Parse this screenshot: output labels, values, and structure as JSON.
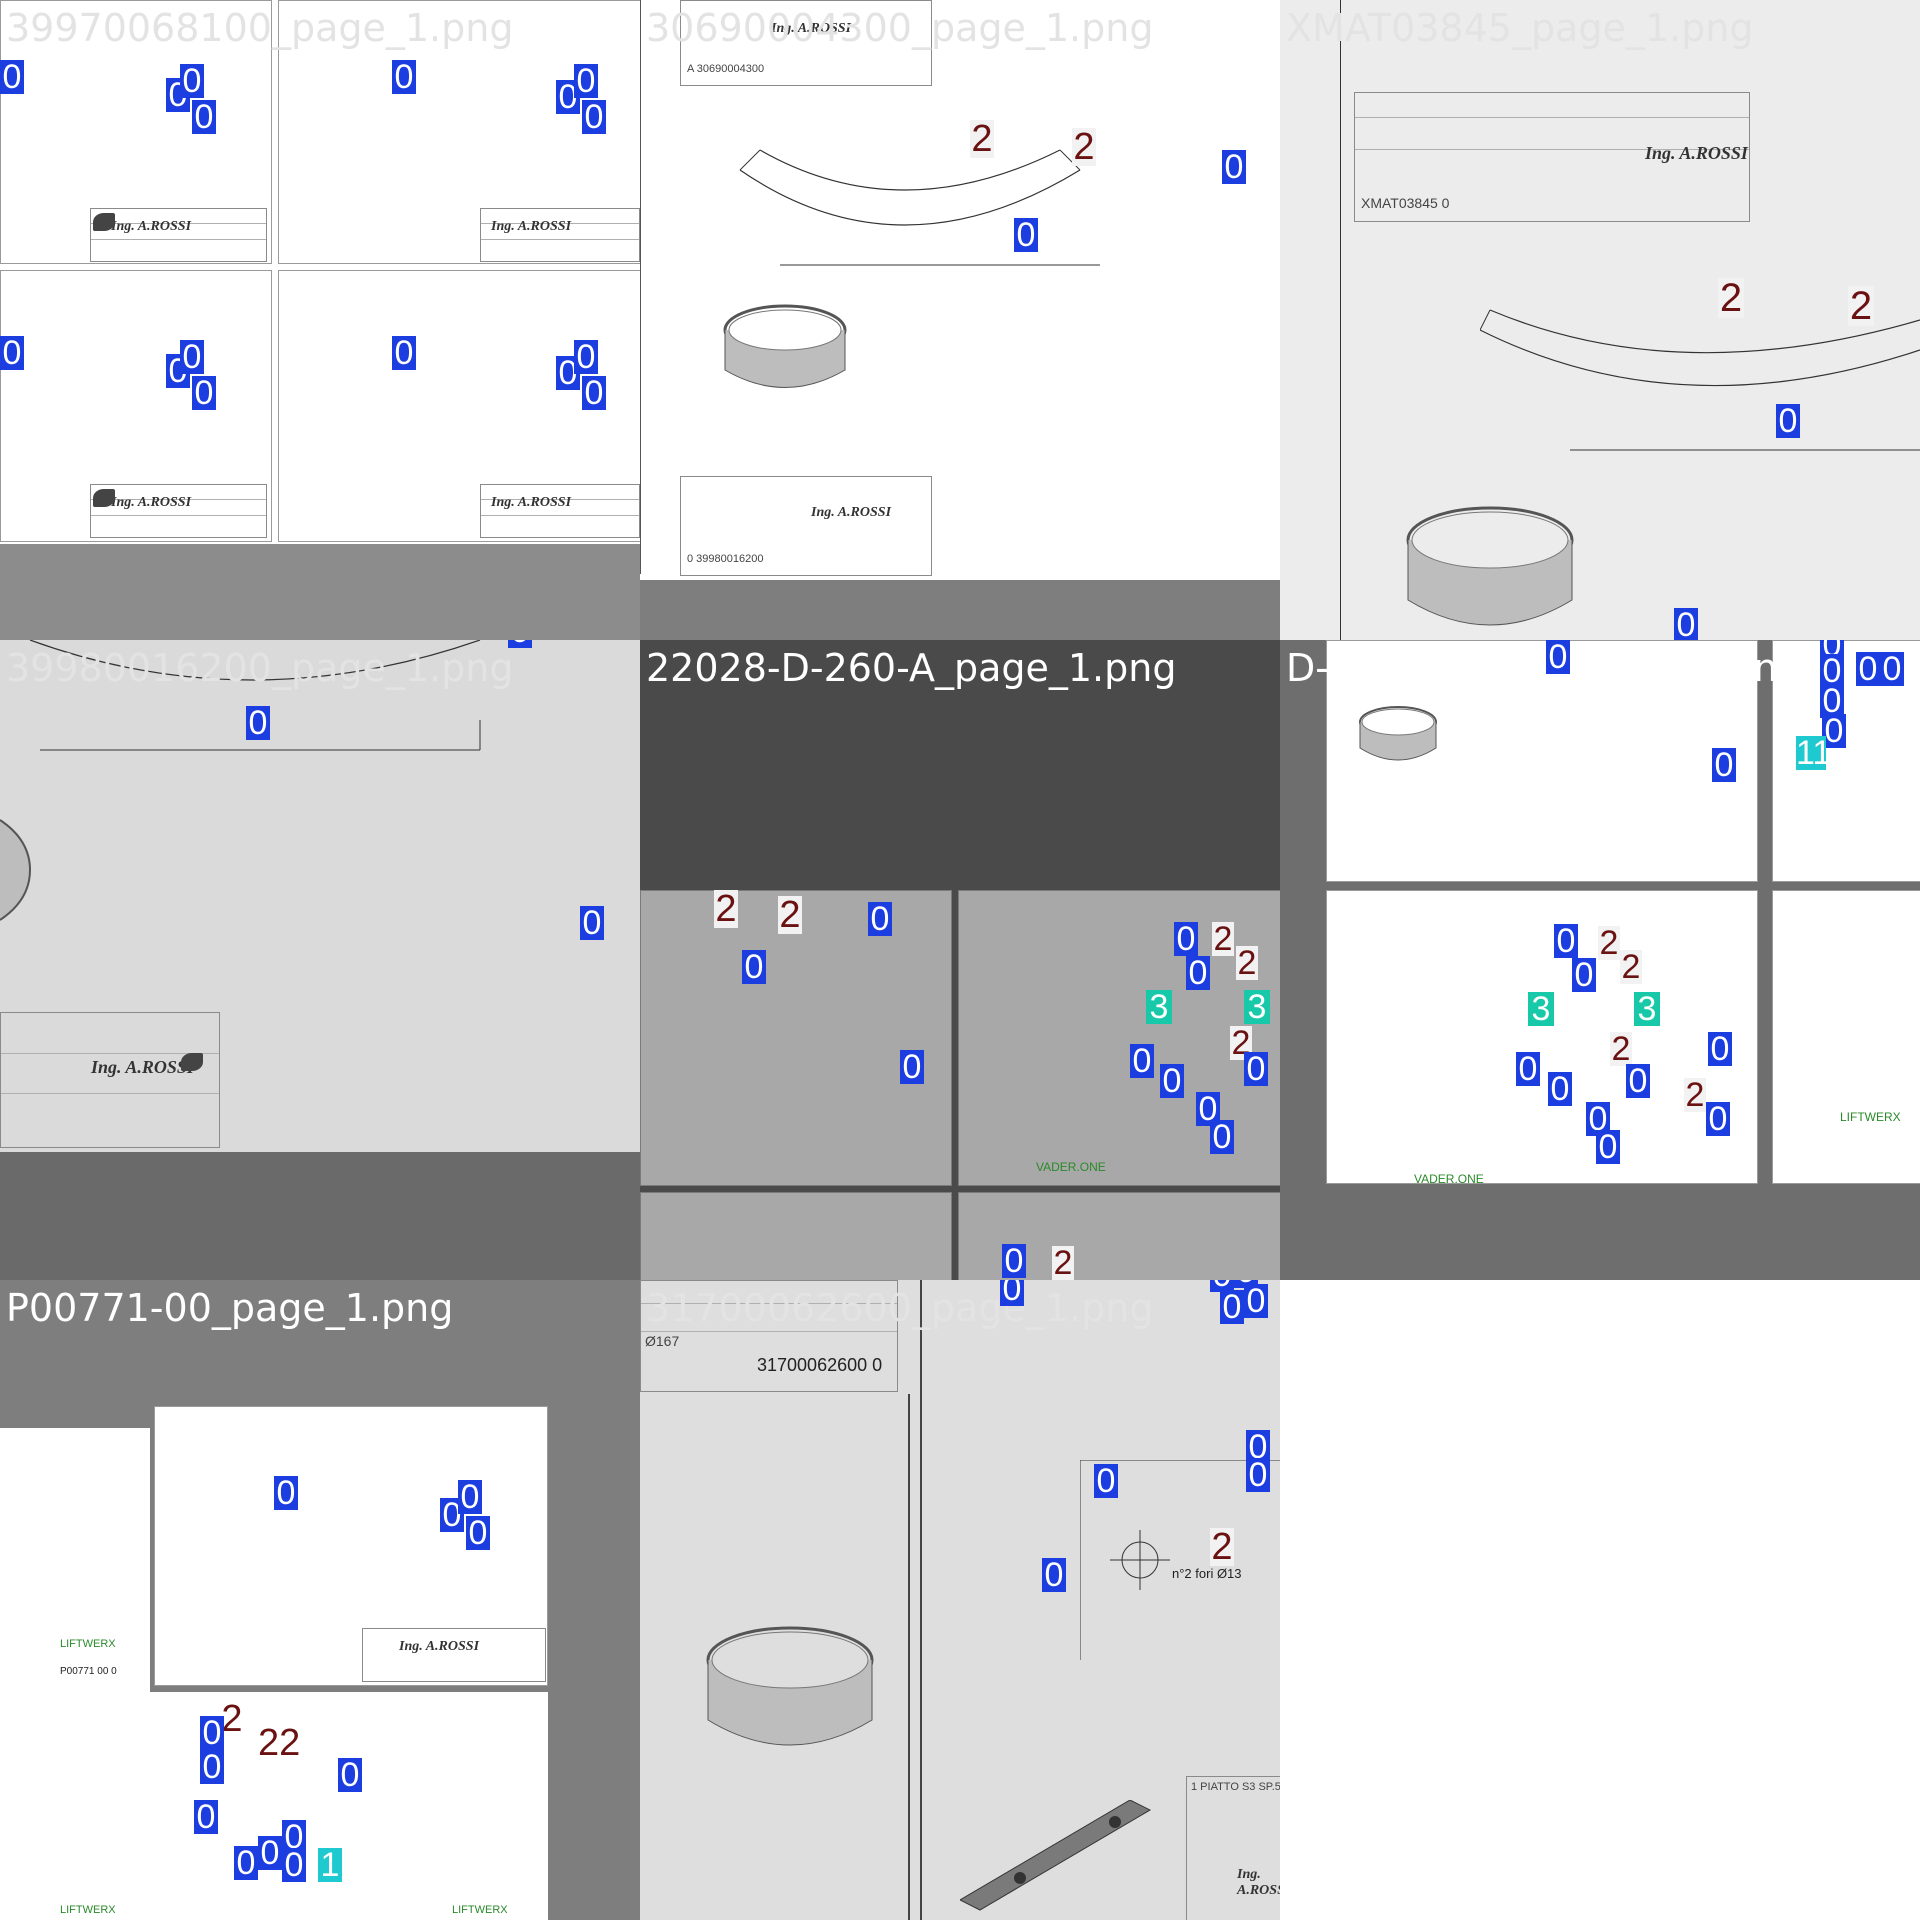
{
  "tiles": [
    {
      "caption": "39970068100_page_1.png"
    },
    {
      "caption": "30690004300_page_1.png"
    },
    {
      "caption": "XMAT03845_page_1.png"
    },
    {
      "caption": "39980016200_page_1.png"
    },
    {
      "caption": "22028-D-260-A_page_1.png"
    },
    {
      "caption": "D-1003000-00_page_1.png"
    },
    {
      "caption": "P00771-00_page_1.png"
    },
    {
      "caption": "31700062600_page_1.png"
    }
  ],
  "drawing_text": {
    "logo": "Ing. A.ROSSI",
    "ref_a": "A  30690004300",
    "ref_b": "0  39980016200",
    "ref_c": "XMAT03845  0",
    "ref_d": "31700062600   0",
    "ref_e": "P00771   00   0",
    "liftwerx": "LIFTWERX",
    "vader": "VADER.ONE",
    "holes_note": "n°2 fori Ø13",
    "piatto": "1   PIATTO S3 SP.5",
    "diam": "Ø167"
  },
  "colors": {
    "class0": "#1c3ee0",
    "class1": "#1ec9d0",
    "class2_text": "#6a1212",
    "class3": "#17c9a8"
  }
}
